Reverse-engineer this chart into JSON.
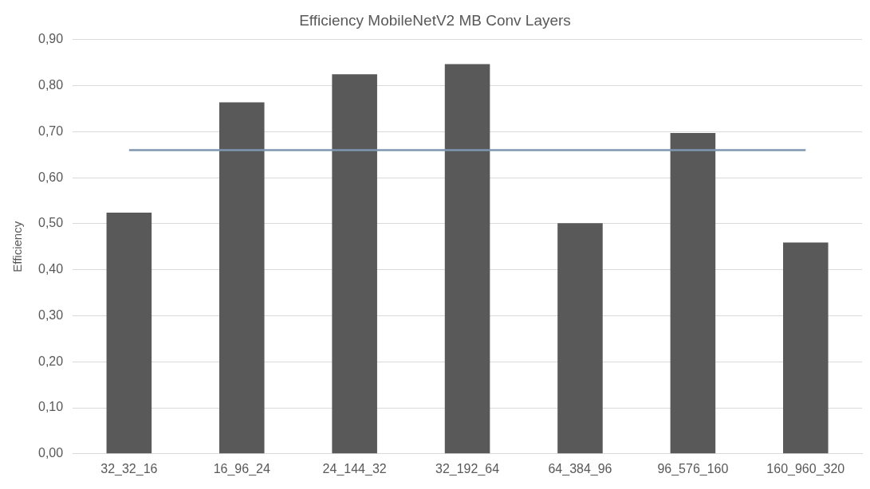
{
  "chart_data": {
    "type": "bar",
    "title": "Efficiency MobileNetV2 MB Conv Layers",
    "ylabel": "Efficiency",
    "categories": [
      "32_32_16",
      "16_96_24",
      "24_144_32",
      "32_192_64",
      "64_384_96",
      "96_576_160",
      "160_960_320"
    ],
    "series": [
      {
        "color": "#595959",
        "values": [
          0.524,
          0.764,
          0.825,
          0.847,
          0.501,
          0.697,
          0.459
        ]
      },
      {
        "type": "line",
        "color": "#7f96b2",
        "values": [
          0.66,
          0.66,
          0.66,
          0.66,
          0.66,
          0.66,
          0.66
        ]
      }
    ],
    "ylim": [
      0,
      0.9
    ],
    "yticks": [
      {
        "value": 0,
        "label": "0,00"
      },
      {
        "value": 0.1,
        "label": "0,10"
      },
      {
        "value": 0.2,
        "label": "0,20"
      },
      {
        "value": 0.3,
        "label": "0,30"
      },
      {
        "value": 0.4,
        "label": "0,40"
      },
      {
        "value": 0.5,
        "label": "0,50"
      },
      {
        "value": 0.6,
        "label": "0,60"
      },
      {
        "value": 0.7,
        "label": "0,70"
      },
      {
        "value": 0.8,
        "label": "0,80"
      },
      {
        "value": 0.9,
        "label": "0,90"
      }
    ],
    "grid": "y",
    "legend": false,
    "marker": "none"
  }
}
